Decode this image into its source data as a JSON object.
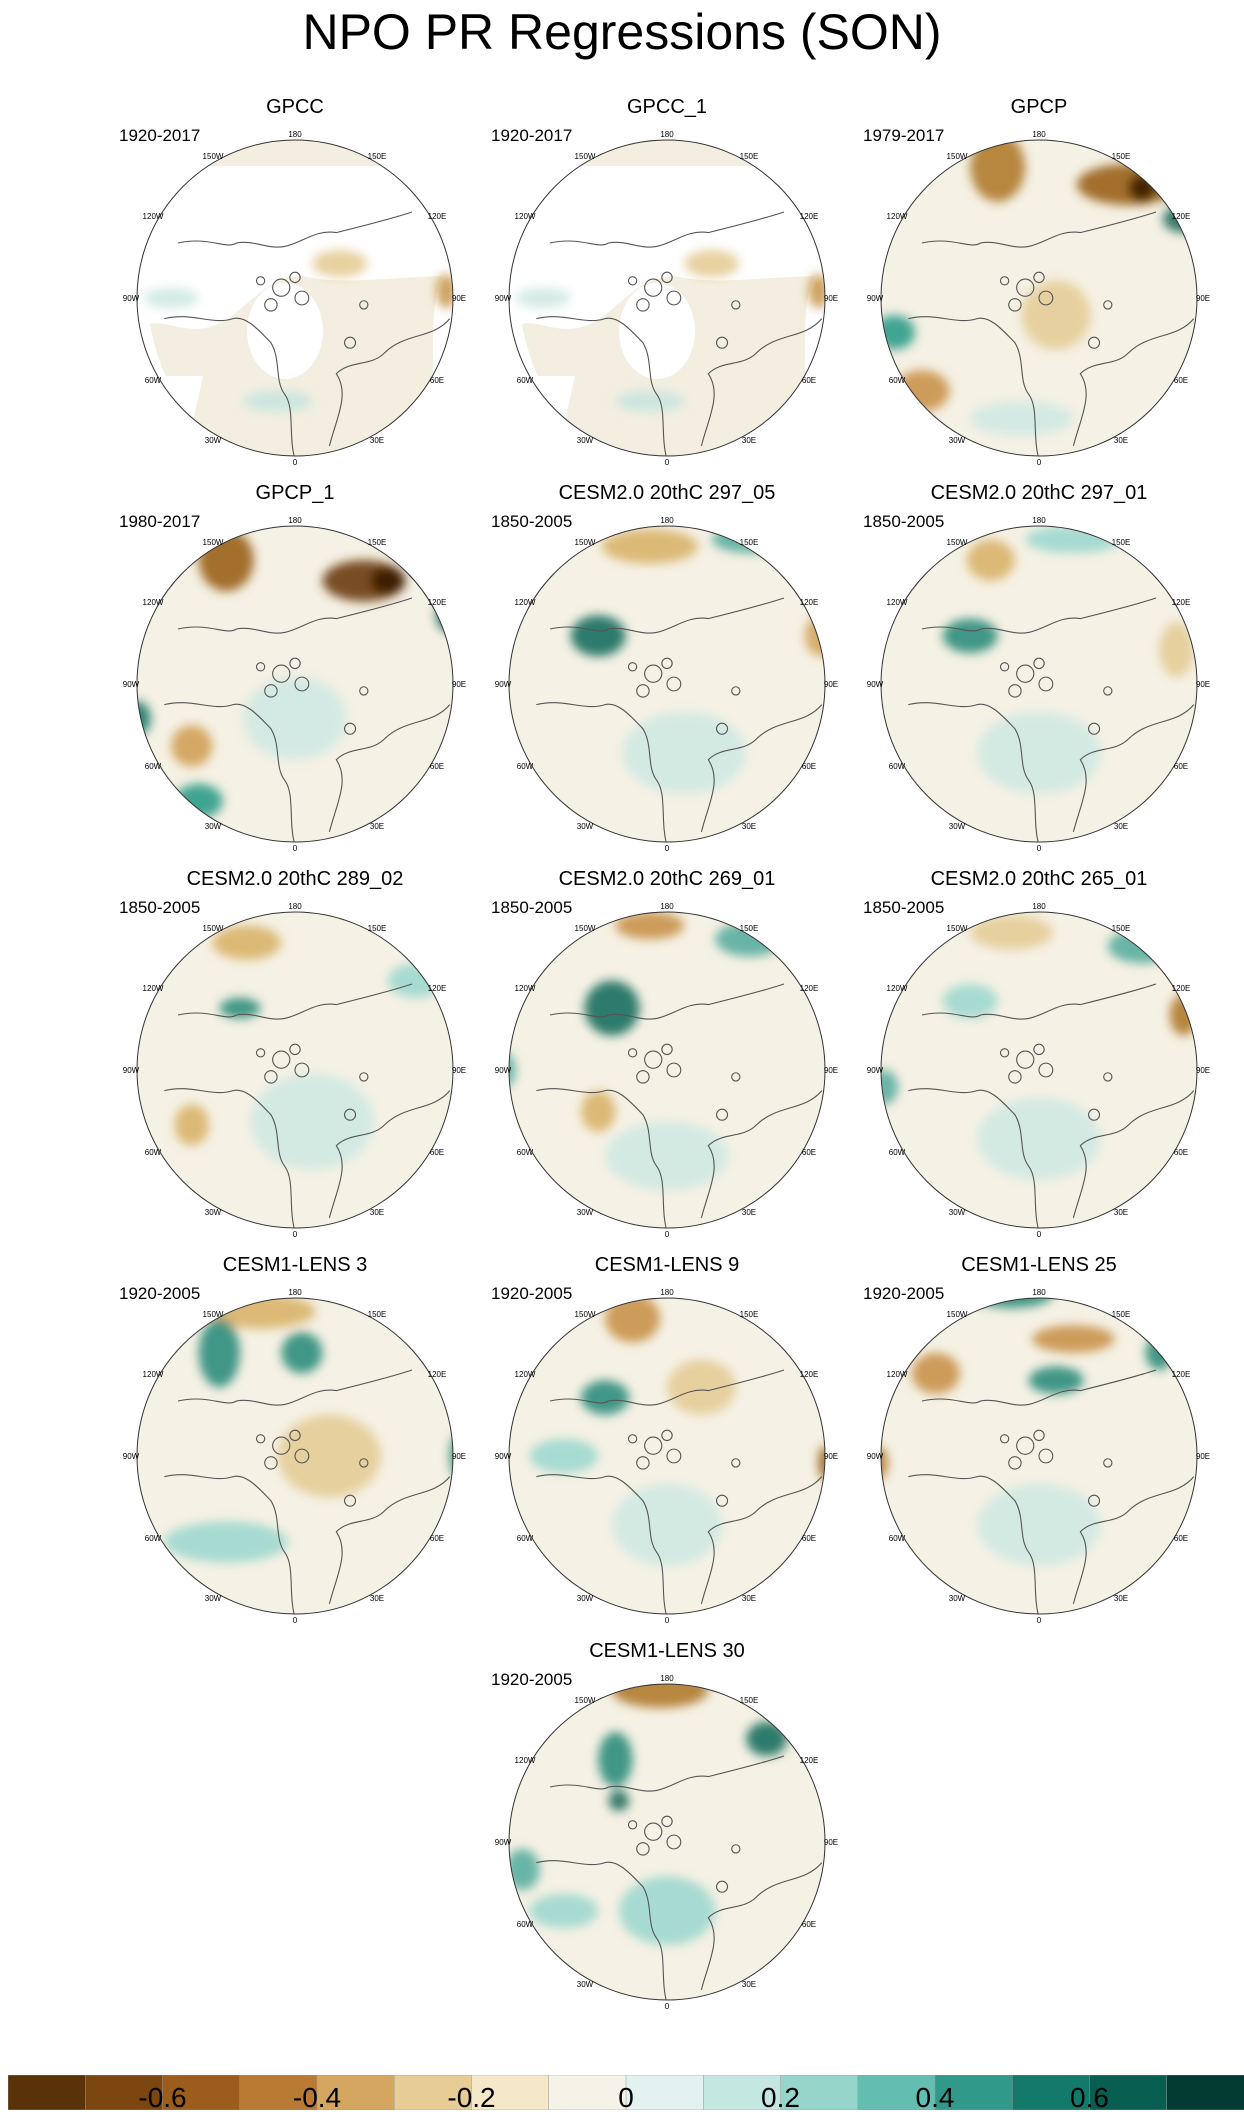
{
  "title": "NPO PR Regressions (SON)",
  "lon_labels": [
    "180",
    "150E",
    "120E",
    "90E",
    "60E",
    "30E",
    "0",
    "30W",
    "60W",
    "90W",
    "120W",
    "150W"
  ],
  "panels": [
    {
      "title": "GPCC",
      "period": "1920-2017",
      "masked": true,
      "blobs": [
        [
          "#e4cc97",
          0.63,
          0.4,
          0.08,
          0.04
        ],
        [
          "#c99a4f",
          0.94,
          0.48,
          0.03,
          0.05
        ],
        [
          "#cfe9e3",
          0.14,
          0.5,
          0.08,
          0.03
        ],
        [
          "#c8e6e0",
          0.45,
          0.8,
          0.1,
          0.03
        ]
      ]
    },
    {
      "title": "GPCC_1",
      "period": "1920-2017",
      "masked": true,
      "blobs": [
        [
          "#e4cc97",
          0.63,
          0.4,
          0.08,
          0.04
        ],
        [
          "#c99a4f",
          0.94,
          0.48,
          0.03,
          0.05
        ],
        [
          "#cfe9e3",
          0.14,
          0.5,
          0.08,
          0.03
        ],
        [
          "#c8e6e0",
          0.45,
          0.8,
          0.1,
          0.03
        ]
      ]
    },
    {
      "title": "GPCP",
      "period": "1979-2017",
      "masked": false,
      "blobs": [
        [
          "#b07a2e",
          0.38,
          0.12,
          0.08,
          0.1
        ],
        [
          "#9a5f17",
          0.76,
          0.17,
          0.15,
          0.06
        ],
        [
          "#3a1b00",
          0.8,
          0.18,
          0.04,
          0.04
        ],
        [
          "#1f6c5c",
          0.92,
          0.27,
          0.06,
          0.04
        ],
        [
          "#2e9b88",
          0.08,
          0.6,
          0.06,
          0.05
        ],
        [
          "#c9924a",
          0.16,
          0.77,
          0.08,
          0.06
        ],
        [
          "#e4cc97",
          0.55,
          0.55,
          0.1,
          0.1
        ],
        [
          "#cfe9e3",
          0.45,
          0.85,
          0.15,
          0.05
        ]
      ]
    },
    {
      "title": "GPCP_1",
      "period": "1980-2017",
      "masked": false,
      "blobs": [
        [
          "#9a5f17",
          0.3,
          0.14,
          0.08,
          0.09
        ],
        [
          "#6b3a08",
          0.7,
          0.2,
          0.12,
          0.06
        ],
        [
          "#3a1b00",
          0.77,
          0.2,
          0.05,
          0.04
        ],
        [
          "#1f6c5c",
          0.95,
          0.3,
          0.04,
          0.05
        ],
        [
          "#1a7866",
          0.04,
          0.6,
          0.04,
          0.05
        ],
        [
          "#2e9b88",
          0.22,
          0.84,
          0.07,
          0.05
        ],
        [
          "#d0a055",
          0.2,
          0.68,
          0.06,
          0.06
        ],
        [
          "#cfe9e3",
          0.5,
          0.6,
          0.15,
          0.12
        ]
      ]
    },
    {
      "title": "CESM2.0 20thC 297_05",
      "period": "1850-2005",
      "masked": false,
      "blobs": [
        [
          "#d9b46a",
          0.45,
          0.1,
          0.14,
          0.05
        ],
        [
          "#5aaea0",
          0.75,
          0.08,
          0.12,
          0.04
        ],
        [
          "#1a6e5e",
          0.3,
          0.36,
          0.08,
          0.06
        ],
        [
          "#d4a560",
          0.95,
          0.36,
          0.05,
          0.06
        ],
        [
          "#cfe9e3",
          0.55,
          0.7,
          0.18,
          0.12
        ]
      ]
    },
    {
      "title": "CESM2.0 20thC 297_01",
      "period": "1850-2005",
      "masked": false,
      "blobs": [
        [
          "#d9b46a",
          0.36,
          0.14,
          0.07,
          0.06
        ],
        [
          "#9fd8cf",
          0.6,
          0.08,
          0.14,
          0.04
        ],
        [
          "#2d8d7c",
          0.3,
          0.36,
          0.08,
          0.05
        ],
        [
          "#e4cc97",
          0.9,
          0.4,
          0.05,
          0.08
        ],
        [
          "#cfe9e3",
          0.5,
          0.7,
          0.18,
          0.12
        ]
      ]
    },
    {
      "title": "CESM2.0 20thC 289_02",
      "period": "1850-2005",
      "masked": false,
      "blobs": [
        [
          "#d9b46a",
          0.36,
          0.13,
          0.1,
          0.05
        ],
        [
          "#9fd8cf",
          0.85,
          0.24,
          0.08,
          0.05
        ],
        [
          "#2d8d7c",
          0.34,
          0.32,
          0.06,
          0.03
        ],
        [
          "#cfe9e3",
          0.55,
          0.65,
          0.18,
          0.14
        ],
        [
          "#d9b46a",
          0.2,
          0.66,
          0.05,
          0.06
        ]
      ]
    },
    {
      "title": "CESM2.0 20thC 269_01",
      "period": "1850-2005",
      "masked": false,
      "blobs": [
        [
          "#c9924a",
          0.45,
          0.08,
          0.1,
          0.04
        ],
        [
          "#5aaea0",
          0.74,
          0.12,
          0.1,
          0.05
        ],
        [
          "#1a6e5e",
          0.34,
          0.32,
          0.08,
          0.08
        ],
        [
          "#5aaea0",
          0.03,
          0.5,
          0.03,
          0.05
        ],
        [
          "#d9b46a",
          0.3,
          0.62,
          0.05,
          0.06
        ],
        [
          "#cfe9e3",
          0.5,
          0.75,
          0.18,
          0.1
        ]
      ]
    },
    {
      "title": "CESM2.0 20thC 265_01",
      "period": "1850-2005",
      "masked": false,
      "blobs": [
        [
          "#e4cc97",
          0.42,
          0.1,
          0.12,
          0.05
        ],
        [
          "#5aaea0",
          0.8,
          0.14,
          0.1,
          0.05
        ],
        [
          "#9fd8cf",
          0.3,
          0.3,
          0.08,
          0.05
        ],
        [
          "#b07a2e",
          0.92,
          0.34,
          0.04,
          0.06
        ],
        [
          "#5aaea0",
          0.05,
          0.55,
          0.04,
          0.05
        ],
        [
          "#cfe9e3",
          0.5,
          0.7,
          0.18,
          0.12
        ]
      ]
    },
    {
      "title": "CESM1-LENS 3",
      "period": "1920-2005",
      "masked": false,
      "blobs": [
        [
          "#d9b46a",
          0.4,
          0.08,
          0.16,
          0.05
        ],
        [
          "#2d8d7c",
          0.28,
          0.2,
          0.06,
          0.1
        ],
        [
          "#2d8d7c",
          0.52,
          0.2,
          0.06,
          0.06
        ],
        [
          "#5aaea0",
          0.92,
          0.2,
          0.04,
          0.04
        ],
        [
          "#2d8d7c",
          0.97,
          0.5,
          0.02,
          0.06
        ],
        [
          "#9fd8cf",
          0.3,
          0.75,
          0.18,
          0.06
        ],
        [
          "#e4cc97",
          0.6,
          0.5,
          0.15,
          0.12
        ]
      ]
    },
    {
      "title": "CESM1-LENS 9",
      "period": "1920-2005",
      "masked": false,
      "blobs": [
        [
          "#c9924a",
          0.4,
          0.1,
          0.08,
          0.07
        ],
        [
          "#2d8d7c",
          0.32,
          0.33,
          0.07,
          0.05
        ],
        [
          "#9fd8cf",
          0.2,
          0.5,
          0.1,
          0.05
        ],
        [
          "#9a5f17",
          0.96,
          0.52,
          0.02,
          0.05
        ],
        [
          "#e4cc97",
          0.6,
          0.3,
          0.1,
          0.08
        ],
        [
          "#cfe9e3",
          0.5,
          0.7,
          0.16,
          0.12
        ]
      ]
    },
    {
      "title": "CESM1-LENS 25",
      "period": "1920-2005",
      "masked": false,
      "blobs": [
        [
          "#2d8d7c",
          0.42,
          0.03,
          0.12,
          0.04
        ],
        [
          "#c9924a",
          0.2,
          0.26,
          0.07,
          0.06
        ],
        [
          "#c9924a",
          0.6,
          0.16,
          0.12,
          0.04
        ],
        [
          "#2d8d7c",
          0.55,
          0.28,
          0.08,
          0.04
        ],
        [
          "#2d8d7c",
          0.85,
          0.2,
          0.04,
          0.05
        ],
        [
          "#b07a2e",
          0.03,
          0.52,
          0.03,
          0.05
        ],
        [
          "#cfe9e3",
          0.5,
          0.7,
          0.18,
          0.12
        ]
      ]
    },
    {
      "title": "CESM1-LENS 30",
      "period": "1920-2005",
      "masked": false,
      "blobs": [
        [
          "#b07a2e",
          0.48,
          0.06,
          0.14,
          0.05
        ],
        [
          "#1a6e5e",
          0.79,
          0.2,
          0.06,
          0.05
        ],
        [
          "#2d8d7c",
          0.35,
          0.26,
          0.05,
          0.08
        ],
        [
          "#1f6c5c",
          0.36,
          0.38,
          0.03,
          0.03
        ],
        [
          "#5aaea0",
          0.08,
          0.58,
          0.05,
          0.06
        ],
        [
          "#9fd8cf",
          0.2,
          0.7,
          0.1,
          0.05
        ],
        [
          "#9fd8cf",
          0.5,
          0.7,
          0.14,
          0.1
        ]
      ]
    }
  ],
  "colorbar": {
    "colors": [
      "#5a3208",
      "#7b4610",
      "#9c5d1c",
      "#b97b34",
      "#d4a660",
      "#e7cd95",
      "#f5e8c8",
      "#f5f2e7",
      "#e3f2f0",
      "#c4e8e1",
      "#96d5ca",
      "#63bdb0",
      "#30998a",
      "#137a6b",
      "#075e51",
      "#023b31"
    ],
    "labels": [
      "-0.6",
      "-0.4",
      "-0.2",
      "0",
      "0.2",
      "0.4",
      "0.6"
    ]
  }
}
